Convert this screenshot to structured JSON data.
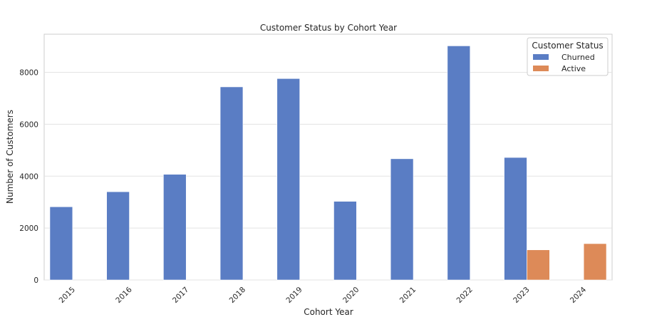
{
  "chart_data": {
    "type": "bar",
    "title": "Customer Status by Cohort Year",
    "xlabel": "Cohort Year",
    "ylabel": "Number of Customers",
    "categories": [
      "2015",
      "2016",
      "2017",
      "2018",
      "2019",
      "2020",
      "2021",
      "2022",
      "2023",
      "2024"
    ],
    "series": [
      {
        "name": "Churned",
        "color": "#5a7dc4",
        "values": [
          2820,
          3400,
          4070,
          7440,
          7760,
          3030,
          4670,
          9020,
          4720,
          0
        ]
      },
      {
        "name": "Active",
        "color": "#dd8a58",
        "values": [
          0,
          0,
          0,
          0,
          0,
          0,
          0,
          0,
          1160,
          1400
        ]
      }
    ],
    "ylim": [
      0,
      9470
    ],
    "yticks": [
      "0",
      "2000",
      "4000",
      "6000",
      "8000"
    ],
    "grid": true,
    "legend": {
      "title": "Customer Status",
      "placement": "top-right"
    }
  }
}
